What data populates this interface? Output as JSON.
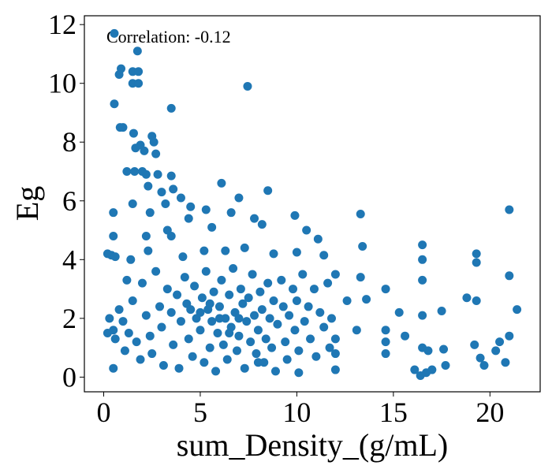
{
  "chart_data": {
    "type": "scatter",
    "annotation": "Correlation: -0.12",
    "x_label": "sum_Density_(g/mL)",
    "y_label": "Eg",
    "color": "#1f77b4",
    "xlim": [
      -1,
      22.6
    ],
    "ylim": [
      -0.5,
      12.3
    ],
    "xticks": [
      0,
      5,
      10,
      15,
      20
    ],
    "yticks": [
      0,
      2,
      4,
      6,
      8,
      10,
      12
    ],
    "x": [
      0.55,
      1.75,
      0.9,
      0.8,
      1.5,
      1.8,
      1.5,
      1.8,
      7.45,
      0.55,
      3.5,
      0.85,
      1.0,
      1.55,
      2.5,
      1.9,
      2.6,
      1.65,
      2.1,
      2.7,
      1.2,
      1.6,
      2.0,
      2.2,
      2.8,
      3.5,
      2.3,
      3.0,
      3.6,
      6.1,
      8.5,
      7.0,
      4.0,
      3.2,
      1.5,
      0.5,
      2.4,
      4.5,
      5.3,
      6.6,
      7.8,
      9.9,
      13.3,
      21.0,
      0.5,
      2.2,
      3.5,
      3.3,
      4.4,
      5.6,
      8.2,
      10.5,
      11.1,
      13.4,
      16.5,
      19.3,
      0.2,
      0.4,
      1.4,
      2.3,
      4.1,
      5.2,
      6.3,
      7.3,
      8.8,
      10.0,
      11.4,
      16.5,
      19.3,
      21.0,
      13.3,
      14.6,
      16.5,
      18.8,
      19.3,
      21.4,
      15.3,
      16.5,
      17.5,
      13.6,
      12.6,
      13.1,
      14.6,
      14.6,
      15.6,
      16.5,
      16.8,
      17.6,
      16.1,
      16.4,
      16.7,
      17.0,
      17.7,
      19.2,
      19.5,
      19.7,
      20.3,
      20.5,
      20.8,
      21.0,
      14.6,
      12.0,
      11.7,
      12.0,
      10.1,
      8.0,
      0.3,
      0.5,
      0.6,
      0.2,
      0.8,
      1.0,
      1.1,
      1.3,
      0.5,
      1.5,
      1.7,
      1.9,
      2.0,
      2.2,
      2.4,
      2.5,
      2.7,
      2.9,
      3.0,
      3.1,
      3.3,
      3.5,
      3.6,
      3.8,
      3.9,
      4.0,
      4.2,
      4.3,
      4.4,
      4.6,
      4.7,
      4.8,
      5.0,
      5.1,
      5.2,
      5.3,
      5.4,
      5.5,
      5.6,
      5.7,
      5.8,
      5.9,
      6.0,
      6.1,
      6.2,
      6.3,
      6.4,
      6.5,
      6.6,
      6.7,
      6.8,
      6.9,
      7.0,
      7.1,
      7.2,
      7.3,
      7.4,
      7.5,
      7.6,
      7.7,
      7.8,
      7.9,
      8.0,
      8.1,
      8.2,
      8.3,
      8.4,
      8.5,
      8.6,
      8.7,
      8.8,
      8.9,
      9.0,
      9.2,
      9.3,
      9.4,
      9.5,
      9.6,
      9.8,
      9.9,
      10.0,
      10.1,
      10.3,
      10.4,
      10.6,
      10.7,
      10.9,
      11.0,
      11.2,
      11.4,
      11.6,
      11.8,
      12.0,
      12.0,
      6.0,
      5.0,
      6.5,
      7.0,
      4.5,
      5.5,
      1.2,
      0.6
    ],
    "values": [
      11.7,
      11.1,
      10.5,
      10.3,
      10.4,
      10.4,
      10.0,
      10.0,
      9.9,
      9.3,
      9.15,
      8.5,
      8.5,
      8.3,
      8.2,
      7.9,
      8.0,
      7.8,
      7.7,
      7.6,
      7.0,
      7.0,
      7.0,
      6.9,
      6.9,
      6.85,
      6.5,
      6.3,
      6.4,
      6.6,
      6.35,
      6.1,
      6.1,
      5.9,
      5.9,
      5.6,
      5.6,
      5.8,
      5.7,
      5.6,
      5.4,
      5.5,
      5.55,
      5.7,
      4.8,
      4.8,
      4.8,
      5.0,
      5.4,
      5.1,
      5.2,
      5.0,
      4.7,
      4.45,
      4.5,
      4.2,
      4.2,
      4.15,
      4.0,
      4.3,
      4.1,
      4.3,
      4.3,
      4.4,
      4.2,
      4.25,
      4.15,
      4.0,
      3.9,
      3.45,
      3.4,
      3.0,
      3.3,
      2.7,
      2.6,
      2.3,
      2.2,
      2.1,
      2.25,
      2.65,
      2.6,
      1.6,
      1.6,
      1.2,
      1.4,
      1.0,
      0.9,
      0.95,
      0.25,
      0.05,
      0.15,
      0.25,
      0.4,
      1.1,
      0.65,
      0.4,
      0.9,
      1.2,
      0.5,
      1.4,
      0.8,
      0.25,
      1.0,
      1.3,
      0.15,
      0.5,
      2.0,
      1.6,
      1.3,
      1.5,
      2.3,
      1.9,
      0.9,
      1.5,
      0.3,
      2.6,
      1.2,
      0.6,
      3.2,
      2.1,
      1.4,
      0.8,
      3.6,
      2.4,
      1.7,
      0.4,
      3.0,
      2.2,
      1.1,
      2.8,
      0.3,
      1.9,
      3.4,
      2.5,
      1.3,
      0.7,
      3.1,
      2.0,
      1.6,
      2.7,
      0.5,
      3.6,
      2.3,
      1.0,
      1.9,
      2.9,
      0.2,
      1.5,
      2.4,
      3.3,
      1.1,
      2.0,
      0.6,
      2.8,
      1.7,
      3.7,
      2.2,
      0.9,
      1.4,
      3.0,
      2.5,
      0.3,
      1.9,
      2.7,
      1.2,
      3.5,
      2.1,
      0.8,
      1.6,
      2.9,
      2.3,
      0.5,
      1.3,
      3.2,
      2.0,
      1.0,
      2.6,
      0.2,
      1.8,
      3.3,
      2.4,
      1.2,
      0.6,
      2.1,
      3.0,
      1.6,
      2.6,
      0.9,
      3.5,
      1.9,
      2.4,
      1.3,
      3.0,
      0.7,
      2.2,
      1.7,
      3.2,
      2.0,
      3.5,
      0.8,
      2.0,
      2.2,
      1.5,
      2.0,
      2.3,
      2.5,
      3.3,
      4.1
    ]
  }
}
